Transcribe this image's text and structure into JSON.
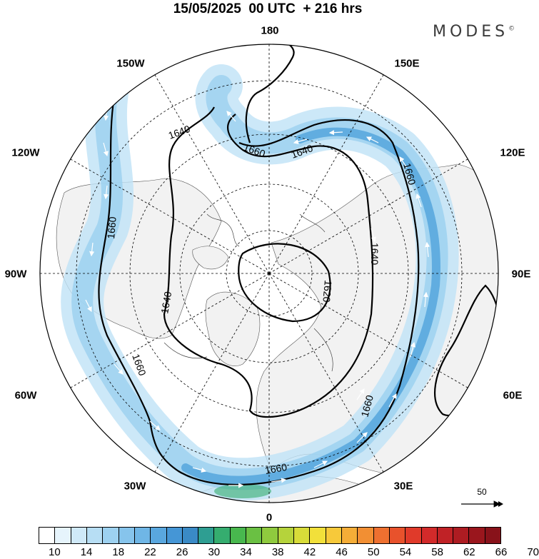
{
  "header": {
    "title": "15/05/2025  00 UTC  + 216 hrs",
    "brand": "MODES",
    "brand_mark": "©"
  },
  "map": {
    "projection": "north-polar-stereographic",
    "longitude_labels": {
      "lon_180": "180",
      "lon_150w": "150W",
      "lon_150e": "150E",
      "lon_120w": "120W",
      "lon_120e": "120E",
      "lon_90w": "90W",
      "lon_90e": "90E",
      "lon_60w": "60W",
      "lon_60e": "60E",
      "lon_30w": "30W",
      "lon_30e": "30E",
      "lon_0": "0"
    },
    "contour_labels": {
      "c1": "1640",
      "c2": "1660",
      "c3": "1640",
      "c4": "1660",
      "c5": "1660",
      "c6": "1640",
      "c7": "1640",
      "c8": "1620",
      "c9": "1660",
      "c10": "1660",
      "c11": "1660"
    },
    "land_color": "#f2f2f2",
    "ocean_color": "#ffffff",
    "jet_colors": [
      "#dff0fb",
      "#bfe2f6",
      "#9dd1f0",
      "#7cbde8",
      "#5aa8de"
    ]
  },
  "reference_vector": {
    "label": "50"
  },
  "colorbar": {
    "colors": [
      "#ffffff",
      "#e6f4fc",
      "#cfe9f8",
      "#b7def4",
      "#9dd1f0",
      "#86c4ec",
      "#6fb6e6",
      "#59a7df",
      "#4596d6",
      "#3a8ac6",
      "#2e9e92",
      "#35ad6f",
      "#48b84e",
      "#6ac043",
      "#8fca3e",
      "#b5d33b",
      "#d8dc39",
      "#f2e03a",
      "#f7c93a",
      "#f5ad37",
      "#f28f33",
      "#ee7030",
      "#e8522c",
      "#e03a2a",
      "#d22a2a",
      "#c02226",
      "#ad1c22",
      "#9a161d",
      "#88121a"
    ],
    "ticks": [
      "10",
      "14",
      "18",
      "22",
      "26",
      "30",
      "34",
      "38",
      "42",
      "46",
      "50",
      "54",
      "58",
      "62",
      "66",
      "70"
    ]
  }
}
